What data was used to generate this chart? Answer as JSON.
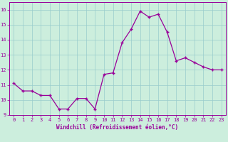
{
  "x": [
    0,
    1,
    2,
    3,
    4,
    5,
    6,
    7,
    8,
    9,
    10,
    11,
    12,
    13,
    14,
    15,
    16,
    17,
    18,
    19,
    20,
    21,
    22,
    23
  ],
  "y": [
    11.1,
    10.6,
    10.6,
    10.3,
    10.3,
    9.4,
    9.4,
    10.1,
    10.1,
    9.4,
    11.7,
    11.8,
    13.8,
    14.7,
    15.9,
    15.5,
    15.7,
    14.5,
    12.6,
    12.8,
    12.5,
    12.2,
    12.0,
    12.0
  ],
  "line_color": "#990099",
  "marker_color": "#990099",
  "bg_color": "#cceedd",
  "grid_color": "#99cccc",
  "xlabel": "Windchill (Refroidissement éolien,°C)",
  "xlabel_color": "#990099",
  "tick_color": "#990099",
  "ylim": [
    9,
    16.5
  ],
  "xlim": [
    -0.5,
    23.5
  ],
  "yticks": [
    9,
    10,
    11,
    12,
    13,
    14,
    15,
    16
  ],
  "xticks": [
    0,
    1,
    2,
    3,
    4,
    5,
    6,
    7,
    8,
    9,
    10,
    11,
    12,
    13,
    14,
    15,
    16,
    17,
    18,
    19,
    20,
    21,
    22,
    23
  ]
}
